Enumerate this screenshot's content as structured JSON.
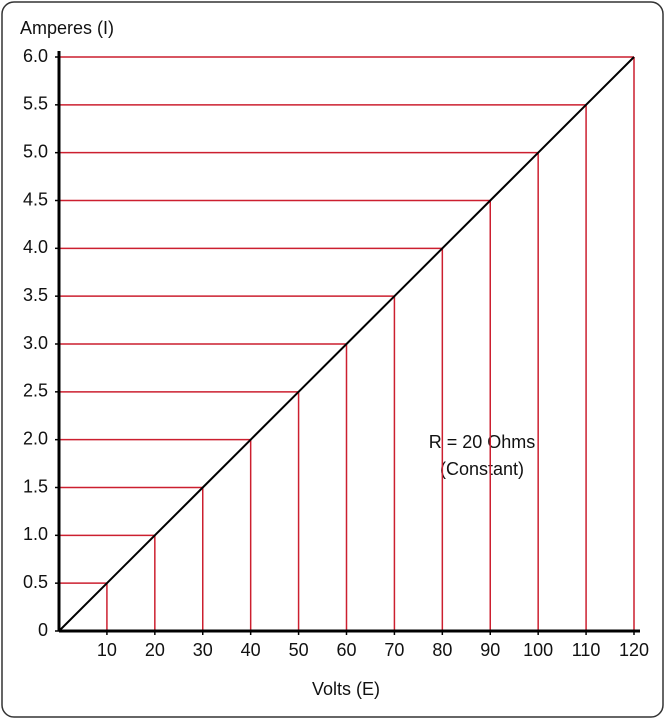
{
  "chart_data": {
    "type": "line",
    "x_label": "Volts (E)",
    "y_label": "Amperes (I)",
    "annotation": [
      "R = 20 Ohms",
      "(Constant)"
    ],
    "x": [
      0,
      10,
      20,
      30,
      40,
      50,
      60,
      70,
      80,
      90,
      100,
      110,
      120
    ],
    "values": [
      0,
      0.5,
      1.0,
      1.5,
      2.0,
      2.5,
      3.0,
      3.5,
      4.0,
      4.5,
      5.0,
      5.5,
      6.0
    ],
    "color": "#000000",
    "guide_color": "#cc1f2f",
    "xlim": [
      0,
      120
    ],
    "ylim": [
      0,
      6
    ],
    "xticks": [
      10,
      20,
      30,
      40,
      50,
      60,
      70,
      80,
      90,
      100,
      110,
      120
    ],
    "yticks": [
      0,
      0.5,
      {
        "value": 1,
        "label": "1.0"
      },
      1.5,
      {
        "value": 2,
        "label": "2.0"
      },
      2.5,
      {
        "value": 3,
        "label": "3.0"
      },
      3.5,
      {
        "value": 4,
        "label": "4.0"
      },
      4.5,
      {
        "value": 5,
        "label": "5.0"
      },
      5.5,
      {
        "value": 6,
        "label": "6.0"
      }
    ],
    "guides": true
  }
}
